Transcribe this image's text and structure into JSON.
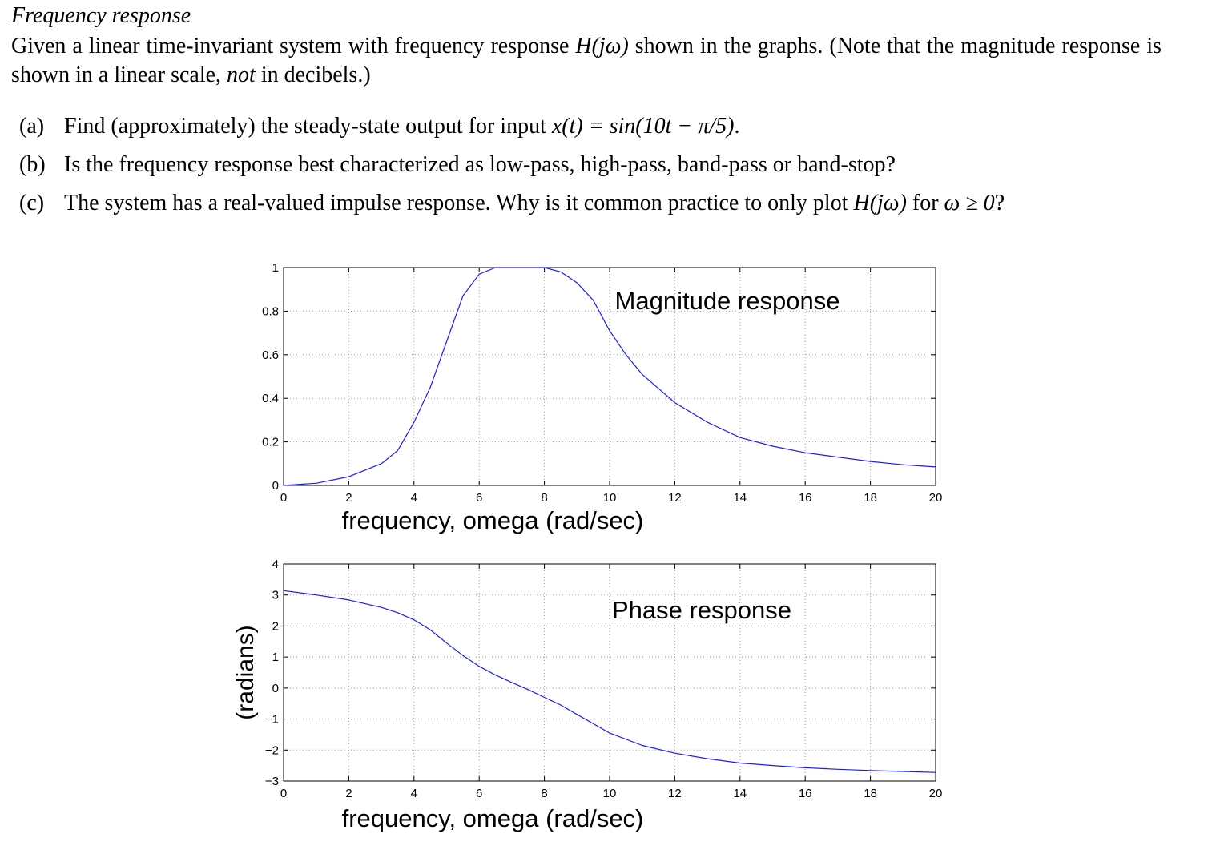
{
  "header": {
    "title": "Frequency response",
    "intro_part1": "Given a linear time-invariant system with frequency response ",
    "intro_math1": "H(jω)",
    "intro_part2": " shown in the graphs. (Note that the magnitude response is shown in a linear scale, ",
    "intro_em": "not",
    "intro_part3": " in decibels.)"
  },
  "questions": [
    {
      "label": "(a)",
      "text_before": "Find (approximately) the steady-state output for input ",
      "math": "x(t) = sin(10t − π/5)",
      "text_after": "."
    },
    {
      "label": "(b)",
      "text_before": "Is the frequency response best characterized as low-pass, high-pass, band-pass or band-stop?",
      "math": "",
      "text_after": ""
    },
    {
      "label": "(c)",
      "text_before": "The system has a real-valued impulse response. Why is it common practice to only plot ",
      "math": "H(jω)",
      "text_between": " for ",
      "math2": "ω ≥ 0",
      "text_after": "?"
    }
  ],
  "colors": {
    "line": "#1a1aff",
    "grid": "#999999",
    "axes": "#000000"
  },
  "chart_data": [
    {
      "type": "line",
      "title": "Magnitude response",
      "xlabel": "frequency, omega (rad/sec)",
      "ylabel": "",
      "xlim": [
        0,
        20
      ],
      "ylim": [
        0,
        1
      ],
      "xticks": [
        0,
        2,
        4,
        6,
        8,
        10,
        12,
        14,
        16,
        18,
        20
      ],
      "yticks": [
        0,
        0.2,
        0.4,
        0.6,
        0.8,
        1
      ],
      "grid": true,
      "series": [
        {
          "x": [
            0,
            1,
            2,
            3,
            3.5,
            4,
            4.5,
            5,
            5.5,
            6,
            6.5,
            7,
            7.5,
            8,
            8.5,
            9,
            9.5,
            10,
            10.5,
            11,
            12,
            13,
            14,
            15,
            16,
            17,
            18,
            19,
            20
          ],
          "values": [
            0,
            0.01,
            0.04,
            0.1,
            0.16,
            0.29,
            0.45,
            0.66,
            0.87,
            0.97,
            1.0,
            1.0,
            1.0,
            1.0,
            0.98,
            0.93,
            0.85,
            0.71,
            0.6,
            0.51,
            0.38,
            0.29,
            0.22,
            0.18,
            0.15,
            0.13,
            0.11,
            0.095,
            0.085
          ]
        }
      ]
    },
    {
      "type": "line",
      "title": "Phase response",
      "xlabel": "frequency, omega (rad/sec)",
      "ylabel": "(radians)",
      "xlim": [
        0,
        20
      ],
      "ylim": [
        -3,
        4
      ],
      "xticks": [
        0,
        2,
        4,
        6,
        8,
        10,
        12,
        14,
        16,
        18,
        20
      ],
      "yticks": [
        -3,
        -2,
        -1,
        0,
        1,
        2,
        3,
        4
      ],
      "grid": true,
      "series": [
        {
          "x": [
            0,
            1,
            2,
            3,
            3.5,
            4,
            4.5,
            5,
            5.5,
            6,
            6.5,
            7,
            7.5,
            8,
            8.5,
            9,
            9.5,
            10,
            11,
            12,
            13,
            14,
            15,
            16,
            17,
            18,
            19,
            20
          ],
          "values": [
            3.14,
            3.0,
            2.84,
            2.6,
            2.43,
            2.2,
            1.88,
            1.45,
            1.05,
            0.7,
            0.42,
            0.18,
            -0.05,
            -0.3,
            -0.55,
            -0.85,
            -1.15,
            -1.45,
            -1.85,
            -2.1,
            -2.28,
            -2.42,
            -2.5,
            -2.57,
            -2.62,
            -2.66,
            -2.69,
            -2.72
          ]
        }
      ]
    }
  ]
}
